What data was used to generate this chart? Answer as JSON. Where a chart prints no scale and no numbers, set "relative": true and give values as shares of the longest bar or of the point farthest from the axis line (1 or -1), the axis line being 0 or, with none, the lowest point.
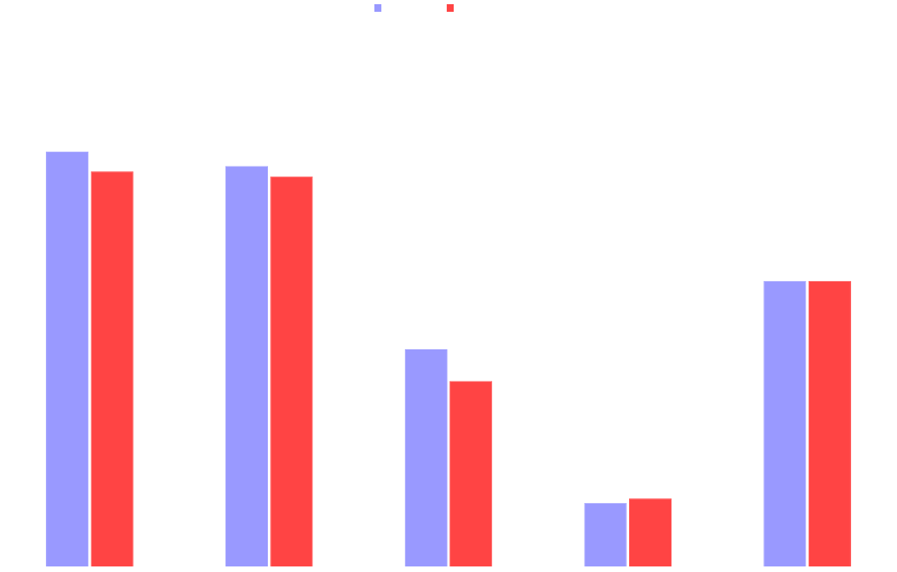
{
  "chart_data": {
    "type": "bar",
    "relative": true,
    "categories": [
      null,
      null,
      null,
      null,
      null
    ],
    "series": [
      {
        "color": "#9999ff",
        "values": [
          1,
          0.965,
          0.523,
          0.153,
          0.688
        ]
      },
      {
        "color": "#ff4444",
        "values": [
          0.952,
          0.94,
          0.447,
          0.164,
          0.688
        ]
      }
    ]
  }
}
